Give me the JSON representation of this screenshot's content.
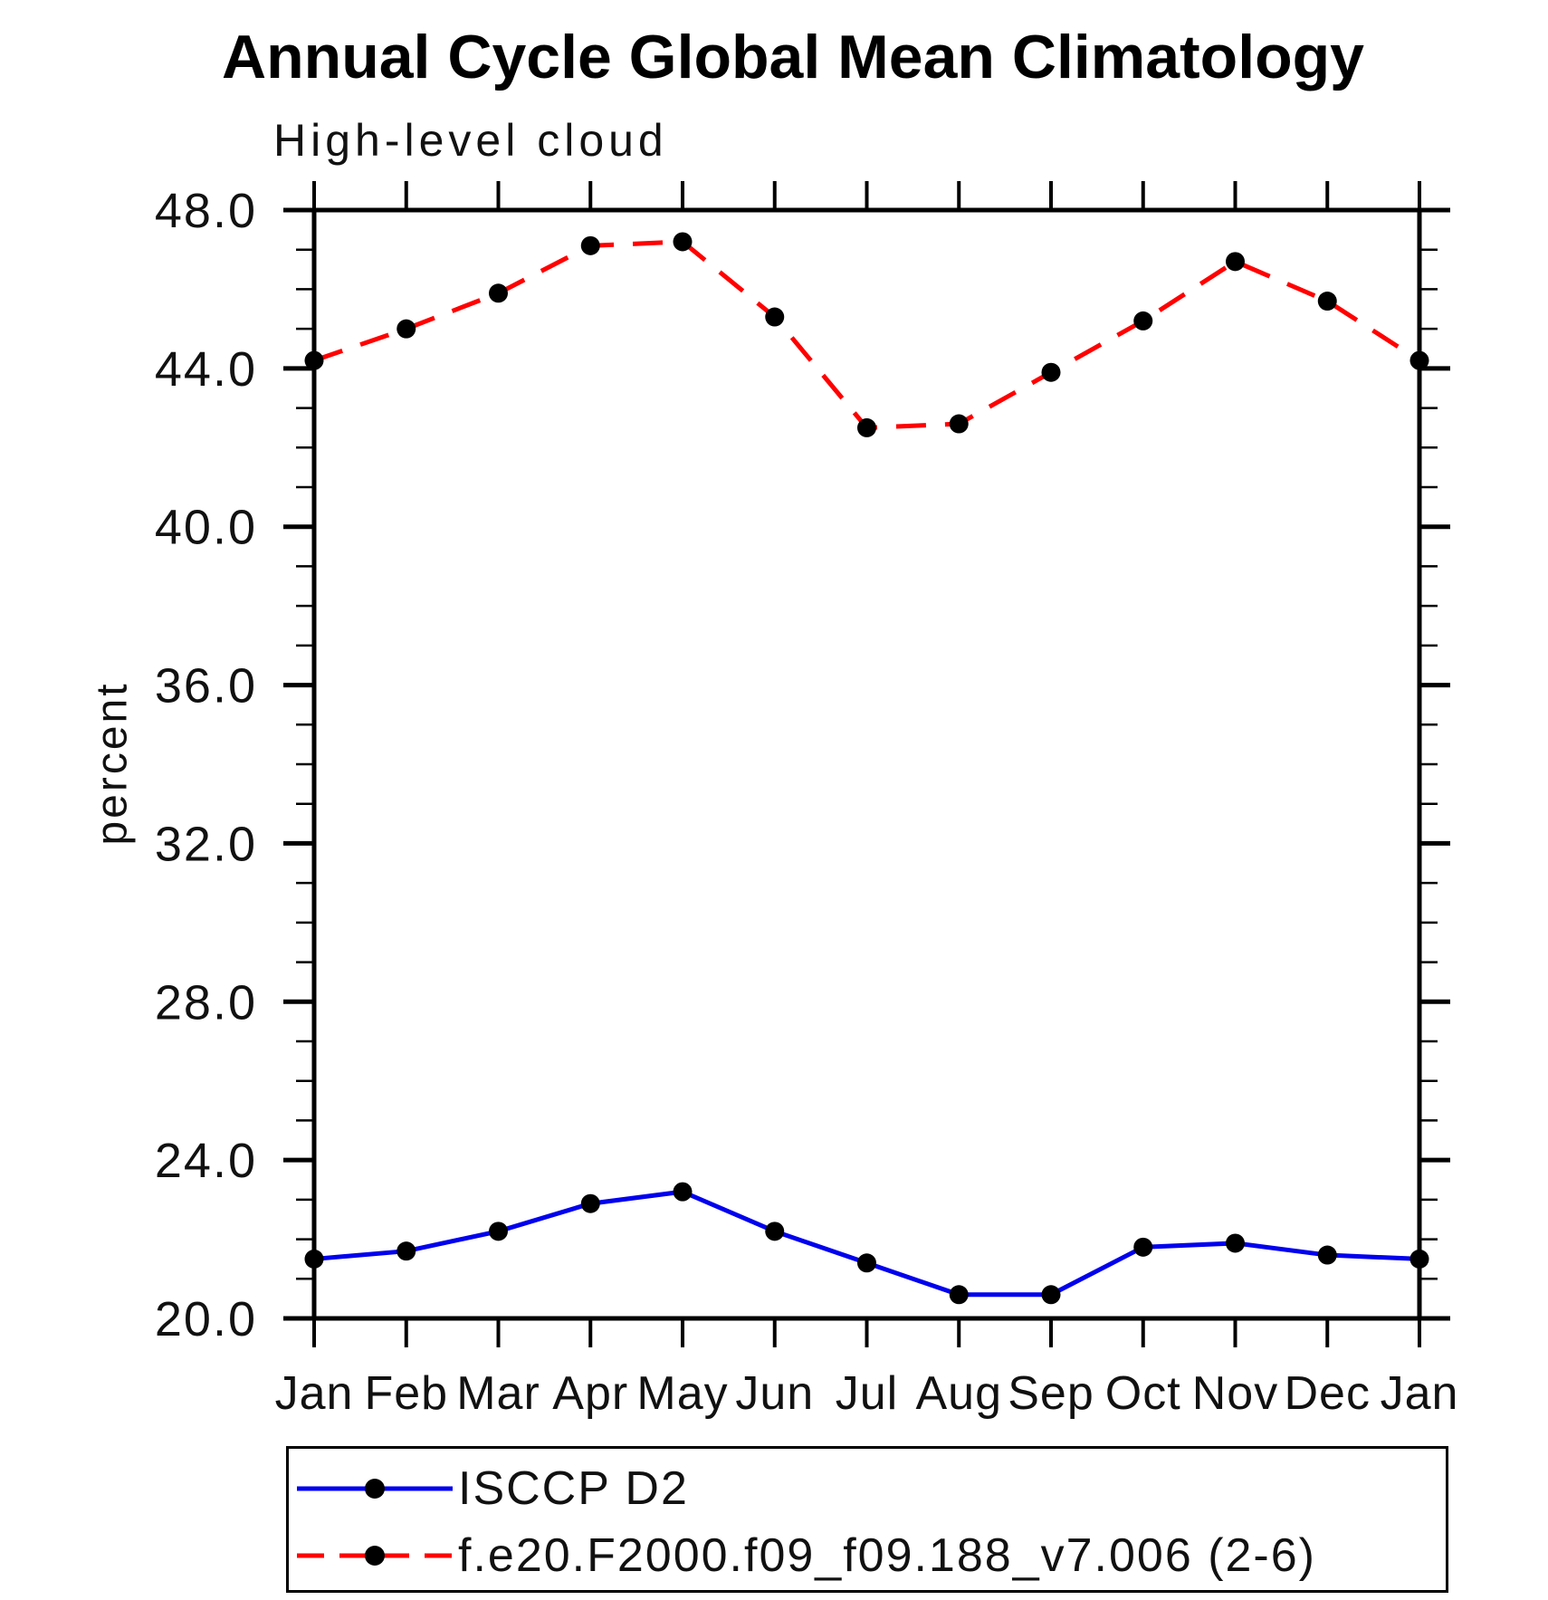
{
  "title": "Annual Cycle Global Mean Climatology",
  "subtitle": "High-level cloud",
  "y_axis_title": "percent",
  "chart_data": {
    "type": "line",
    "x_categories": [
      "Jan",
      "Feb",
      "Mar",
      "Apr",
      "May",
      "Jun",
      "Jul",
      "Aug",
      "Sep",
      "Oct",
      "Nov",
      "Dec",
      "Jan"
    ],
    "series": [
      {
        "name": "ISCCP D2",
        "color": "#0000ee",
        "line_style": "solid",
        "marker": "filled-circle",
        "marker_color": "#000000",
        "values": [
          21.5,
          21.7,
          22.2,
          22.9,
          23.2,
          22.2,
          21.4,
          20.6,
          20.6,
          21.8,
          21.9,
          21.6,
          21.5
        ]
      },
      {
        "name": "f.e20.F2000.f09_f09.188_v7.006 (2-6)",
        "color": "#ff0000",
        "line_style": "dashed",
        "marker": "filled-circle",
        "marker_color": "#000000",
        "values": [
          44.2,
          45.0,
          45.9,
          47.1,
          47.2,
          45.3,
          42.5,
          42.6,
          43.9,
          45.2,
          46.7,
          45.7,
          44.2
        ]
      }
    ],
    "ylabel": "percent",
    "xlabel": "",
    "ylim": [
      20.0,
      48.0
    ],
    "y_major_tick_values": [
      20.0,
      24.0,
      28.0,
      32.0,
      36.0,
      40.0,
      44.0,
      48.0
    ],
    "y_major_tick_labels": [
      "20.0",
      "24.0",
      "28.0",
      "32.0",
      "36.0",
      "40.0",
      "44.0",
      "48.0"
    ],
    "y_minor_tick_step": 1.0,
    "grid": false,
    "frame": "box-with-mirrored-ticks",
    "legend_position": "below-plot-left"
  }
}
